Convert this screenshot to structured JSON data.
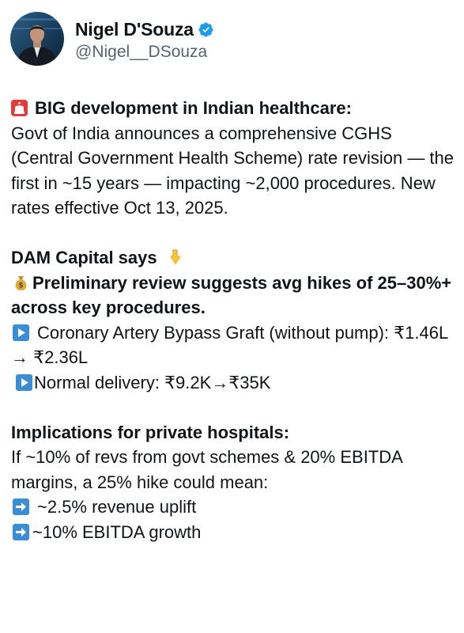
{
  "author": {
    "name": "Nigel D'Souza",
    "handle": "@Nigel__DSouza",
    "verified": true,
    "accent_color": "#1d9bf0"
  },
  "post": {
    "p1": {
      "icon": "police-light-icon",
      "headline": "BIG development in Indian healthcare:",
      "body": "Govt of India announces a comprehensive CGHS (Central Government Health Scheme) rate revision — the first in ~15 years — impacting ~2,000 procedures. New rates effective Oct 13, 2025."
    },
    "p2": {
      "lead": "DAM Capital says",
      "lead_icon": "pointing-down-icon",
      "review_icon": "money-bag-icon",
      "review": "Preliminary review suggests avg hikes of 25–30%+ across key procedures.",
      "items": [
        {
          "icon": "play-button-icon",
          "text": "Coronary Artery Bypass Graft (without pump): ₹1.46L → ₹2.36L"
        },
        {
          "icon": "play-button-icon",
          "text": "Normal delivery: ₹9.2K→₹35K"
        }
      ]
    },
    "p3": {
      "headline": "Implications for private hospitals:",
      "body": "If ~10% of revs from govt schemes & 20% EBITDA margins, a 25% hike could mean:",
      "items": [
        {
          "icon": "right-arrow-icon",
          "text": "~2.5% revenue uplift"
        },
        {
          "icon": "right-arrow-icon",
          "text": "~10% EBITDA growth"
        }
      ]
    }
  }
}
